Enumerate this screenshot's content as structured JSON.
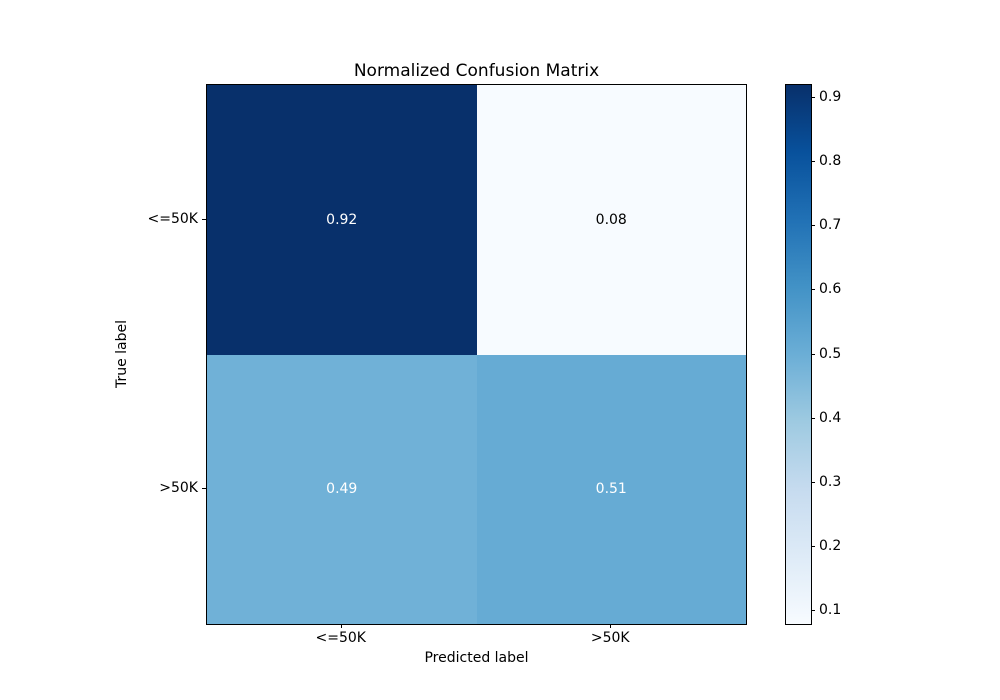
{
  "chart_data": {
    "type": "heatmap",
    "title": "Normalized Confusion Matrix",
    "xlabel": "Predicted label",
    "ylabel": "True label",
    "x_tick_labels": [
      "<=50K",
      ">50K"
    ],
    "y_tick_labels": [
      "<=50K",
      ">50K"
    ],
    "matrix": [
      [
        0.92,
        0.08
      ],
      [
        0.49,
        0.51
      ]
    ],
    "cell_labels": [
      [
        "0.92",
        "0.08"
      ],
      [
        "0.49",
        "0.51"
      ]
    ],
    "cell_colors": [
      [
        "#08306b",
        "#f7fbff"
      ],
      [
        "#70b1d7",
        "#66abd4"
      ]
    ],
    "cell_text_colors": [
      [
        "#ffffff",
        "#000000"
      ],
      [
        "#ffffff",
        "#ffffff"
      ]
    ],
    "colormap": "Blues",
    "colormap_stops": [
      {
        "pos": 0,
        "color": "#f7fbff"
      },
      {
        "pos": 12.5,
        "color": "#deebf7"
      },
      {
        "pos": 25,
        "color": "#c6dbef"
      },
      {
        "pos": 37.5,
        "color": "#9ecae1"
      },
      {
        "pos": 50,
        "color": "#6baed6"
      },
      {
        "pos": 62.5,
        "color": "#4292c6"
      },
      {
        "pos": 75,
        "color": "#2171b5"
      },
      {
        "pos": 87.5,
        "color": "#08519c"
      },
      {
        "pos": 100,
        "color": "#08306b"
      }
    ],
    "colorbar": {
      "vmin": 0.08,
      "vmax": 0.92,
      "ticks": [
        0.1,
        0.2,
        0.3,
        0.4,
        0.5,
        0.6,
        0.7,
        0.8,
        0.9
      ],
      "tick_labels": [
        "0.1",
        "0.2",
        "0.3",
        "0.4",
        "0.5",
        "0.6",
        "0.7",
        "0.8",
        "0.9"
      ]
    },
    "legend_position": "colorbar-right",
    "grid": false,
    "background_color": "#ffffff",
    "spine_color": "#000000"
  }
}
